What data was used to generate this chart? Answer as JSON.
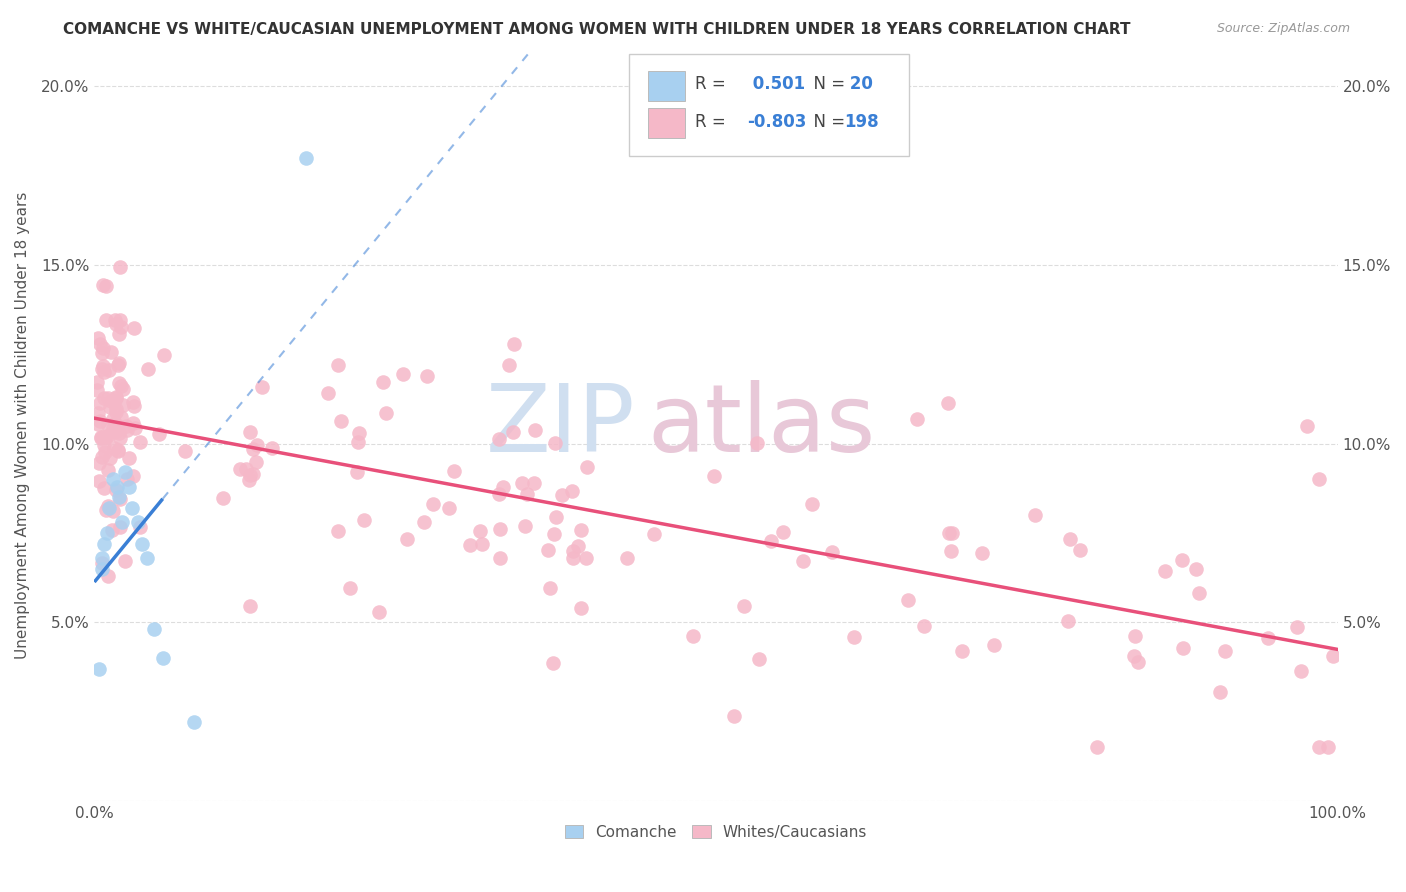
{
  "title": "COMANCHE VS WHITE/CAUCASIAN UNEMPLOYMENT AMONG WOMEN WITH CHILDREN UNDER 18 YEARS CORRELATION CHART",
  "source": "Source: ZipAtlas.com",
  "ylabel": "Unemployment Among Women with Children Under 18 years",
  "xlim": [
    0,
    1.0
  ],
  "ylim": [
    0,
    0.21
  ],
  "xtick_positions": [
    0.0,
    0.1,
    0.2,
    0.3,
    0.4,
    0.5,
    0.6,
    0.7,
    0.8,
    0.9,
    1.0
  ],
  "xticklabels": [
    "0.0%",
    "",
    "",
    "",
    "",
    "",
    "",
    "",
    "",
    "",
    "100.0%"
  ],
  "ytick_positions": [
    0.0,
    0.05,
    0.1,
    0.15,
    0.2
  ],
  "yticklabels_left": [
    "",
    "5.0%",
    "10.0%",
    "15.0%",
    "20.0%"
  ],
  "yticklabels_right": [
    "",
    "5.0%",
    "10.0%",
    "15.0%",
    "20.0%"
  ],
  "comanche_R": 0.501,
  "comanche_N": 20,
  "white_R": -0.803,
  "white_N": 198,
  "comanche_dot_color": "#a8d0f0",
  "white_dot_color": "#f5b8c8",
  "comanche_line_color": "#3a7fd5",
  "white_line_color": "#e8507a",
  "background_color": "#ffffff",
  "watermark_zip": "ZIP",
  "watermark_atlas": "atlas",
  "watermark_color": "#d0dff0",
  "watermark_color2": "#e8c8d8",
  "legend_label_comanche": "Comanche",
  "legend_label_white": "Whites/Caucasians",
  "grid_color": "#dddddd",
  "text_color": "#555555",
  "title_color": "#333333",
  "source_color": "#999999",
  "legend_r_n_color": "#3a7fd5"
}
